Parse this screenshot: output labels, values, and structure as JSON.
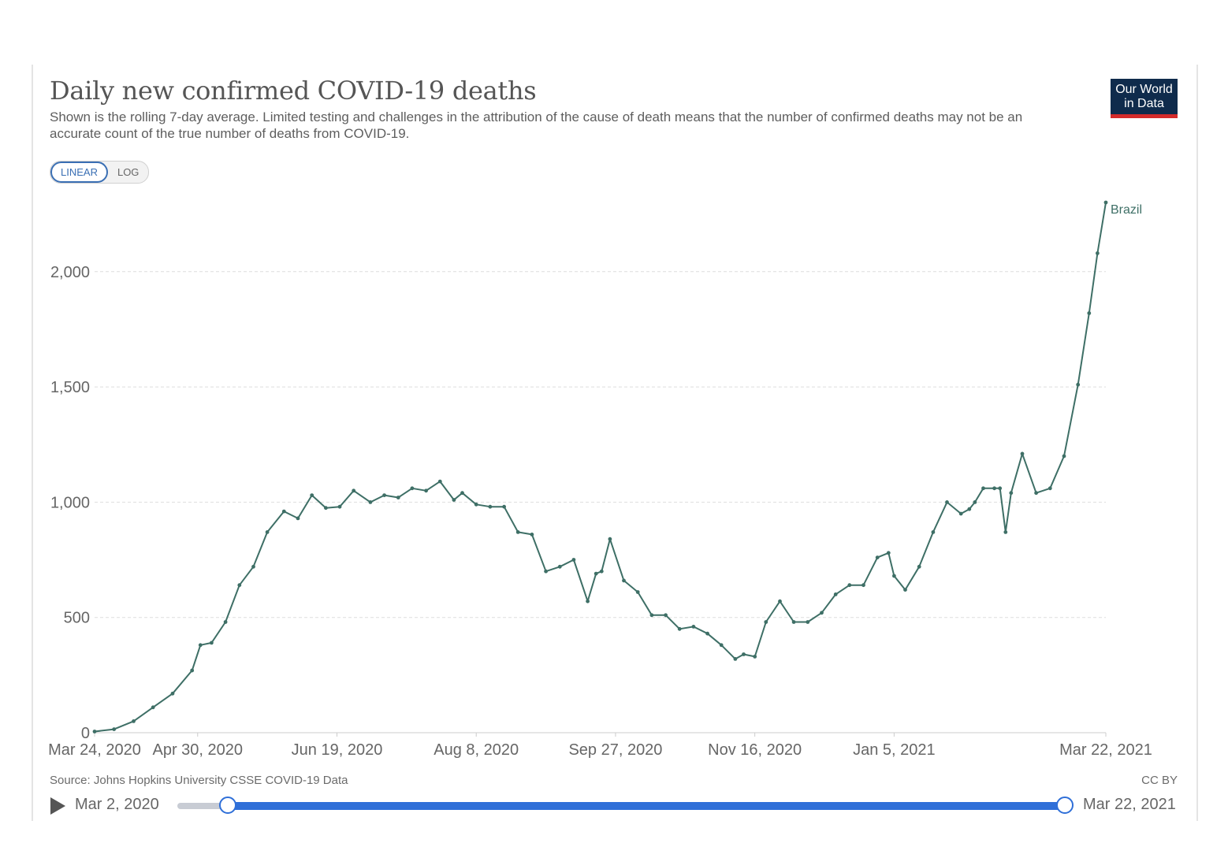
{
  "header": {
    "title": "Daily new confirmed COVID-19 deaths",
    "subtitle": "Shown is the rolling 7-day average. Limited testing and challenges in the attribution of the cause of death means that the number of confirmed deaths may not be an accurate count of the true number of deaths from COVID-19.",
    "logo_line1": "Our World",
    "logo_line2": "in Data"
  },
  "scale_toggle": {
    "linear": "LINEAR",
    "log": "LOG",
    "selected": "LINEAR"
  },
  "footer": {
    "source": "Source: Johns Hopkins University CSSE COVID-19 Data",
    "license": "CC BY"
  },
  "timeline": {
    "start_label": "Mar 2, 2020",
    "end_label": "Mar 22, 2021"
  },
  "colors": {
    "series": "#3e6f66",
    "grid": "#dddddd",
    "slider": "#2f6fd8",
    "logo_bg": "#0f2b4c",
    "logo_bar": "#d42b2b"
  },
  "chart_data": {
    "type": "line",
    "title": "Daily new confirmed COVID-19 deaths",
    "xlabel": "",
    "ylabel": "",
    "ylim": [
      0,
      2300
    ],
    "xlim": [
      "2020-03-24",
      "2021-03-22"
    ],
    "yticks": [
      0,
      500,
      1000,
      1500,
      2000
    ],
    "ytick_labels": [
      "0",
      "500",
      "1,000",
      "1,500",
      "2,000"
    ],
    "xticks": [
      "2020-03-24",
      "2020-04-30",
      "2020-06-19",
      "2020-08-08",
      "2020-09-27",
      "2020-11-16",
      "2021-01-05",
      "2021-03-22"
    ],
    "xtick_labels": [
      "Mar 24, 2020",
      "Apr 30, 2020",
      "Jun 19, 2020",
      "Aug 8, 2020",
      "Sep 27, 2020",
      "Nov 16, 2020",
      "Jan 5, 2021",
      "Mar 22, 2021"
    ],
    "grid": true,
    "legend": "end-of-line label",
    "series": [
      {
        "name": "Brazil",
        "x": [
          "2020-03-24",
          "2020-03-31",
          "2020-04-07",
          "2020-04-14",
          "2020-04-21",
          "2020-04-28",
          "2020-05-01",
          "2020-05-05",
          "2020-05-10",
          "2020-05-15",
          "2020-05-20",
          "2020-05-25",
          "2020-05-31",
          "2020-06-05",
          "2020-06-10",
          "2020-06-15",
          "2020-06-20",
          "2020-06-25",
          "2020-07-01",
          "2020-07-06",
          "2020-07-11",
          "2020-07-16",
          "2020-07-21",
          "2020-07-26",
          "2020-07-31",
          "2020-08-03",
          "2020-08-08",
          "2020-08-13",
          "2020-08-18",
          "2020-08-23",
          "2020-08-28",
          "2020-09-02",
          "2020-09-07",
          "2020-09-12",
          "2020-09-17",
          "2020-09-20",
          "2020-09-22",
          "2020-09-25",
          "2020-09-30",
          "2020-10-05",
          "2020-10-10",
          "2020-10-15",
          "2020-10-20",
          "2020-10-25",
          "2020-10-30",
          "2020-11-04",
          "2020-11-09",
          "2020-11-12",
          "2020-11-16",
          "2020-11-20",
          "2020-11-25",
          "2020-11-30",
          "2020-12-05",
          "2020-12-10",
          "2020-12-15",
          "2020-12-20",
          "2020-12-25",
          "2020-12-30",
          "2021-01-03",
          "2021-01-05",
          "2021-01-09",
          "2021-01-14",
          "2021-01-19",
          "2021-01-24",
          "2021-01-29",
          "2021-02-01",
          "2021-02-03",
          "2021-02-06",
          "2021-02-10",
          "2021-02-12",
          "2021-02-14",
          "2021-02-16",
          "2021-02-20",
          "2021-02-25",
          "2021-03-02",
          "2021-03-07",
          "2021-03-12",
          "2021-03-16",
          "2021-03-19",
          "2021-03-22"
        ],
        "y": [
          5,
          15,
          50,
          110,
          170,
          270,
          380,
          390,
          480,
          640,
          720,
          870,
          960,
          930,
          1030,
          975,
          980,
          1050,
          1000,
          1030,
          1020,
          1060,
          1050,
          1090,
          1010,
          1040,
          990,
          980,
          980,
          870,
          860,
          700,
          720,
          750,
          570,
          690,
          700,
          840,
          660,
          610,
          510,
          510,
          450,
          460,
          430,
          380,
          320,
          340,
          330,
          480,
          570,
          480,
          480,
          520,
          600,
          640,
          640,
          760,
          780,
          680,
          620,
          720,
          870,
          1000,
          950,
          970,
          1000,
          1060,
          1060,
          1060,
          870,
          1040,
          1210,
          1040,
          1060,
          1200,
          1510,
          1820,
          2080,
          2300
        ]
      }
    ]
  }
}
